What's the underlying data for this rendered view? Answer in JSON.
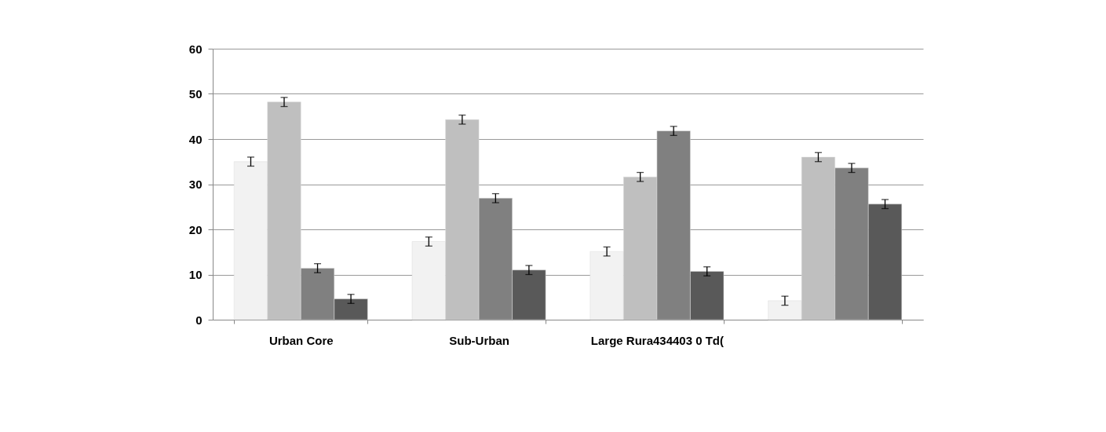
{
  "chart_data": {
    "type": "bar",
    "categories": [
      "Urban Core",
      "Sub-Urban",
      "Large Rura434403 0 Td(",
      null
    ],
    "series": [
      {
        "color": "#f2f2f2",
        "values": [
          35.0,
          17.3,
          15.1,
          4.2
        ],
        "errors": [
          1.0,
          1.0,
          1.0,
          1.0
        ]
      },
      {
        "color": "#bfbfbf",
        "values": [
          48.2,
          44.3,
          31.6,
          36.0
        ],
        "errors": [
          1.0,
          1.0,
          1.0,
          1.0
        ]
      },
      {
        "color": "#808080",
        "values": [
          11.4,
          26.9,
          41.8,
          33.6
        ],
        "errors": [
          1.0,
          1.0,
          1.0,
          1.0
        ]
      },
      {
        "color": "#595959",
        "values": [
          4.6,
          11.0,
          10.7,
          25.6
        ],
        "errors": [
          1.0,
          1.0,
          1.0,
          1.0
        ]
      }
    ],
    "ylim": [
      0,
      60
    ],
    "yticks": [
      0,
      10,
      20,
      30,
      40,
      50,
      60
    ],
    "grid": "y",
    "legend": false
  }
}
